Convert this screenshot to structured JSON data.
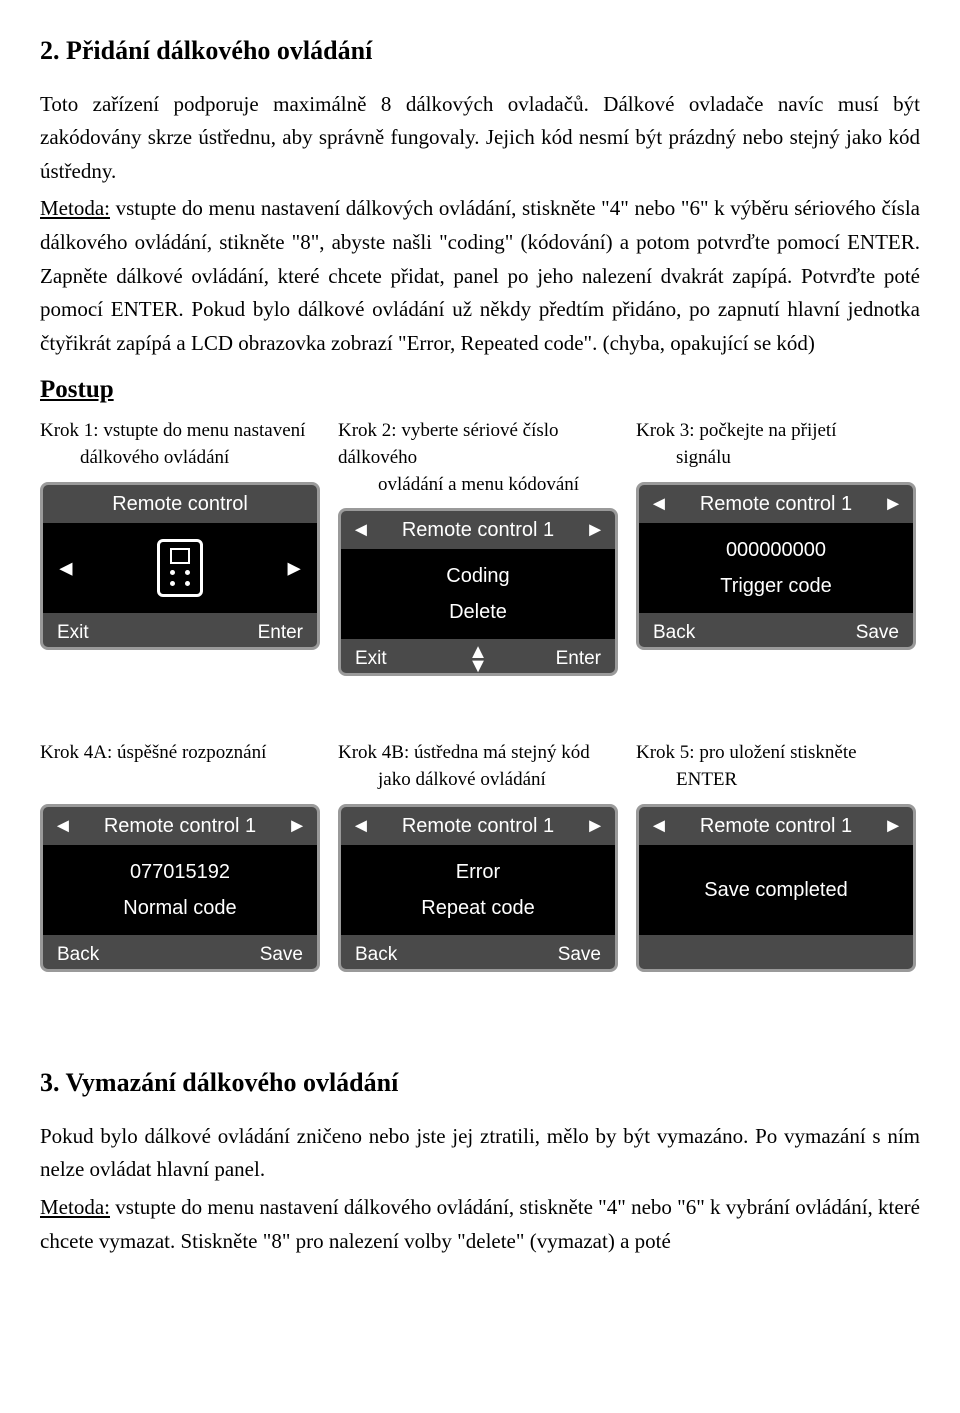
{
  "section2": {
    "title": "2. Přidání dálkového ovládání",
    "para": "Toto zařízení podporuje maximálně 8 dálkových ovladačů. Dálkové ovladače navíc musí být zakódovány skrze ústřednu, aby správně fungovaly. Jejich kód nesmí být prázdný nebo stejný jako kód ústředny.",
    "method_label": "Metoda:",
    "method_text": " vstupte do menu nastavení dálkových ovládání, stiskněte \"4\" nebo \"6\" k výběru sériového čísla dálkového ovládání, stikněte \"8\", abyste našli \"coding\" (kódování) a potom potvrďte pomocí ENTER. Zapněte dálkové ovládání, které chcete přidat, panel po jeho nalezení dvakrát zapípá. Potvrďte poté pomocí ENTER. Pokud bylo dálkové ovládání už někdy předtím přidáno, po zapnutí hlavní jednotka čtyřikrát zapípá a LCD obrazovka zobrazí \"Error, Repeated code\". (chyba, opakující se kód)",
    "postup": "Postup",
    "steps_row1": {
      "col1": {
        "l1": "Krok 1: vstupte do menu nastavení",
        "l2": "dálkového ovládání"
      },
      "col2": {
        "l1": "Krok 2: vyberte sériové číslo dálkového",
        "l2": "ovládání a menu kódování"
      },
      "col3": {
        "l1": "Krok 3: počkejte na přijetí",
        "l2": "signálu"
      }
    },
    "steps_row2": {
      "col1": {
        "l1": "Krok 4A: úspěšné rozpoznání",
        "l2": ""
      },
      "col2": {
        "l1": "Krok 4B: ústředna má stejný kód",
        "l2": "jako dálkové ovládání"
      },
      "col3": {
        "l1": "Krok 5: pro uložení stiskněte",
        "l2": "ENTER"
      }
    }
  },
  "lcd": {
    "s1": {
      "top": "Remote control",
      "bl": "Exit",
      "br": "Enter"
    },
    "s2": {
      "top": "Remote control  1",
      "m1": "Coding",
      "m2": "Delete",
      "bl": "Exit",
      "br": "Enter"
    },
    "s3": {
      "top": "Remote control  1",
      "m1": "000000000",
      "m2": "Trigger code",
      "bl": "Back",
      "br": "Save"
    },
    "s4": {
      "top": "Remote control  1",
      "m1": "077015192",
      "m2": "Normal code",
      "bl": "Back",
      "br": "Save"
    },
    "s5": {
      "top": "Remote control  1",
      "m1": "Error",
      "m2": "Repeat code",
      "bl": "Back",
      "br": "Save"
    },
    "s6": {
      "top": "Remote control  1",
      "m1": "Save completed",
      "bl": "",
      "br": ""
    },
    "arrows": {
      "left": "◄",
      "right": "►",
      "up": "▲",
      "down": "▼"
    }
  },
  "section3": {
    "title": "3. Vymazání dálkového ovládání",
    "para": "Pokud bylo dálkové ovládání zničeno nebo jste jej ztratili, mělo by být vymazáno. Po vymazání s ním nelze ovládat hlavní panel.",
    "method_label": "Metoda:",
    "method_text": " vstupte do menu nastavení dálkového ovládání, stiskněte \"4\" nebo \"6\" k vybrání ovládání, které chcete vymazat. Stiskněte \"8\" pro nalezení volby \"delete\" (vymazat) a poté"
  }
}
